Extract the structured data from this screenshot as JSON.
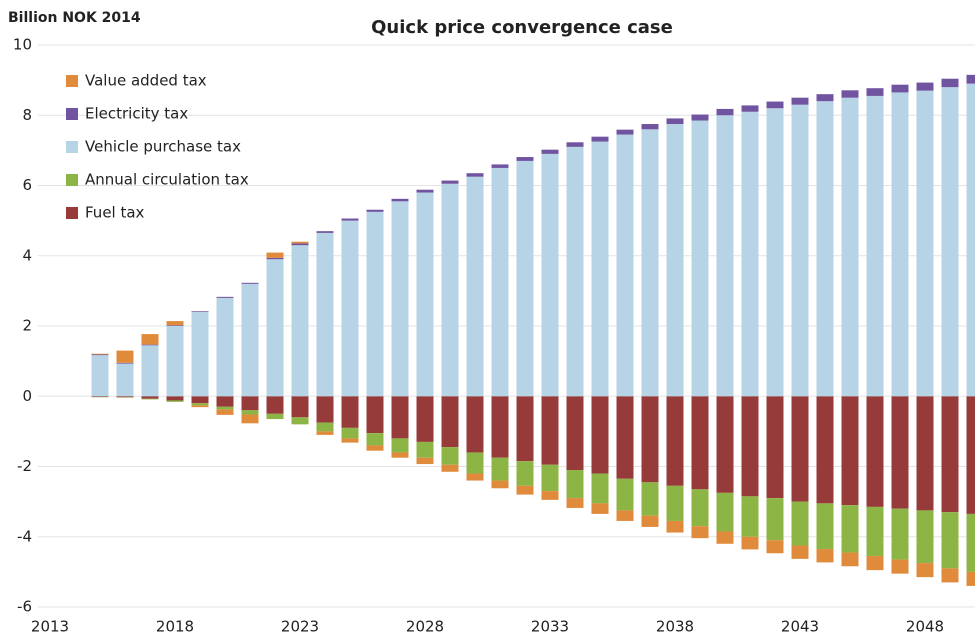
{
  "chart_data": {
    "type": "bar",
    "stacked": true,
    "title": "Quick price convergence case",
    "ylabel": "Billion NOK 2014",
    "categories": [
      "2013",
      null,
      null,
      null,
      null,
      "2018",
      null,
      null,
      null,
      null,
      "2023",
      null,
      null,
      null,
      null,
      "2028",
      null,
      null,
      null,
      null,
      "2033",
      null,
      null,
      null,
      null,
      "2038",
      null,
      null,
      null,
      null,
      "2043",
      null,
      null,
      null,
      null,
      "2048",
      null,
      null
    ],
    "series": [
      {
        "name": "Fuel tax",
        "color": "#973b3a",
        "values": [
          null,
          null,
          -0.02,
          -0.03,
          -0.07,
          -0.12,
          -0.2,
          -0.3,
          -0.4,
          -0.5,
          -0.6,
          -0.75,
          -0.9,
          -1.05,
          -1.2,
          -1.3,
          -1.45,
          -1.6,
          -1.75,
          -1.85,
          -1.95,
          -2.1,
          -2.2,
          -2.35,
          -2.45,
          -2.55,
          -2.65,
          -2.75,
          -2.85,
          -2.9,
          -3.0,
          -3.05,
          -3.1,
          -3.15,
          -3.2,
          -3.25,
          -3.3,
          -3.35
        ]
      },
      {
        "name": "Annual circulation tax",
        "color": "#8db545",
        "values": [
          null,
          null,
          -0.01,
          -0.01,
          -0.02,
          -0.04,
          -0.06,
          -0.08,
          -0.12,
          -0.15,
          -0.2,
          -0.25,
          -0.3,
          -0.35,
          -0.4,
          -0.45,
          -0.5,
          -0.6,
          -0.65,
          -0.7,
          -0.75,
          -0.8,
          -0.85,
          -0.9,
          -0.95,
          -1.0,
          -1.05,
          -1.1,
          -1.15,
          -1.2,
          -1.25,
          -1.3,
          -1.35,
          -1.4,
          -1.45,
          -1.5,
          -1.6,
          -1.65
        ]
      },
      {
        "name": "Vehicle purchase tax",
        "color": "#b7d4e6",
        "values": [
          null,
          null,
          1.17,
          0.93,
          1.45,
          2.0,
          2.4,
          2.8,
          3.2,
          3.9,
          4.3,
          4.65,
          5.0,
          5.25,
          5.55,
          5.8,
          6.05,
          6.25,
          6.5,
          6.7,
          6.9,
          7.1,
          7.25,
          7.45,
          7.6,
          7.75,
          7.85,
          8.0,
          8.1,
          8.2,
          8.3,
          8.4,
          8.5,
          8.55,
          8.65,
          8.7,
          8.8,
          8.9
        ]
      },
      {
        "name": "Electricity tax",
        "color": "#7054a0",
        "values": [
          null,
          null,
          0.02,
          0.02,
          0.02,
          0.02,
          0.02,
          0.03,
          0.03,
          0.04,
          0.05,
          0.05,
          0.06,
          0.06,
          0.07,
          0.08,
          0.09,
          0.1,
          0.1,
          0.11,
          0.12,
          0.13,
          0.14,
          0.14,
          0.15,
          0.16,
          0.17,
          0.18,
          0.18,
          0.19,
          0.2,
          0.2,
          0.21,
          0.22,
          0.22,
          0.23,
          0.24,
          0.25
        ]
      },
      {
        "name": "Value added tax",
        "color": "#e08b3c",
        "values": [
          null,
          null,
          0.02,
          0.35,
          0.3,
          0.12,
          -0.05,
          -0.15,
          -0.25,
          0.15,
          0.05,
          -0.1,
          -0.12,
          -0.15,
          -0.15,
          -0.18,
          -0.2,
          -0.2,
          -0.22,
          -0.25,
          -0.25,
          -0.28,
          -0.3,
          -0.3,
          -0.32,
          -0.33,
          -0.34,
          -0.35,
          -0.36,
          -0.37,
          -0.38,
          -0.38,
          -0.39,
          -0.4,
          -0.4,
          -0.4,
          -0.4,
          -0.4
        ]
      }
    ],
    "ylim": [
      -6,
      10
    ],
    "yticks": [
      -6,
      -4,
      -2,
      0,
      2,
      4,
      6,
      8,
      10
    ],
    "grid": true,
    "legend": "upper left"
  }
}
